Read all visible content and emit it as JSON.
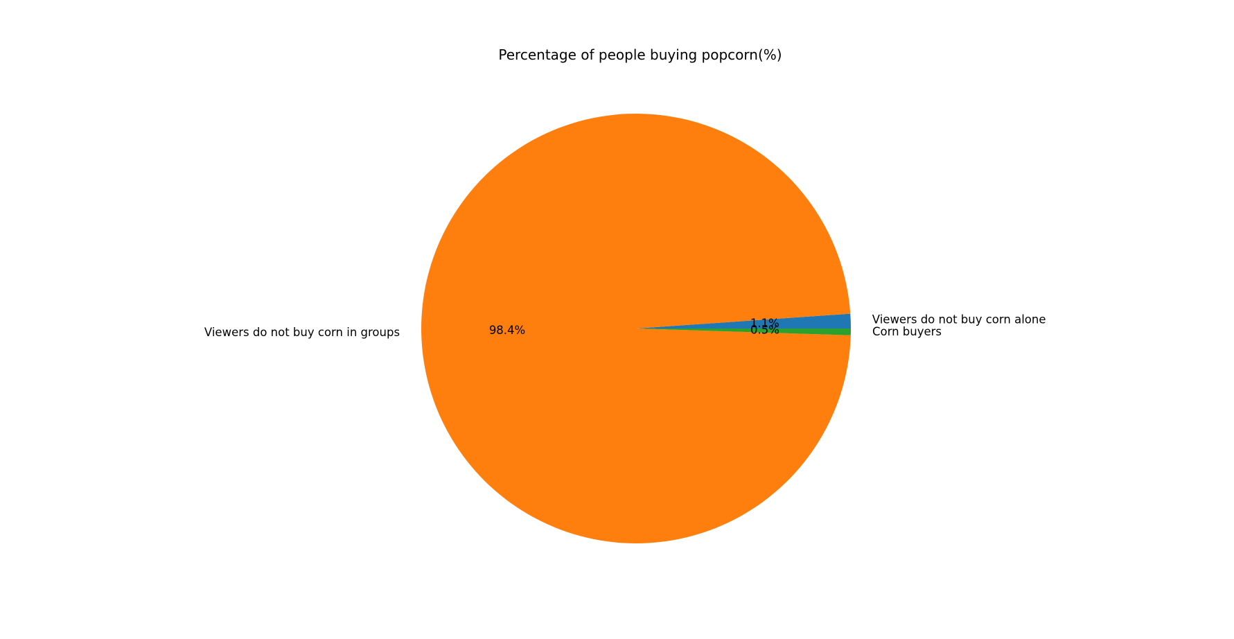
{
  "chart_data": {
    "type": "pie",
    "title": "Percentage of people buying popcorn(%)",
    "slices": [
      {
        "label": "Viewers do not buy corn alone",
        "value": 1.1,
        "pct_label": "1.1%",
        "color": "#1f77b4"
      },
      {
        "label": "Viewers do not buy corn in groups",
        "value": 98.4,
        "pct_label": "98.4%",
        "color": "#ff7f0e"
      },
      {
        "label": "Corn buyers",
        "value": 0.5,
        "pct_label": "0.5%",
        "color": "#2ca02c"
      }
    ],
    "start_angle": 0,
    "direction": "counterclockwise"
  }
}
